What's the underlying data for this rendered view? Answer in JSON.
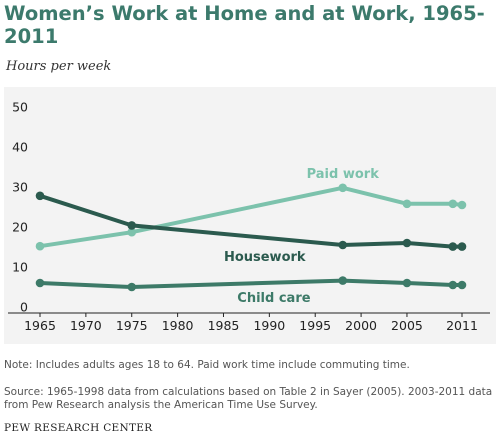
{
  "title": "Women’s Work at Home and at Work, 1965-2011",
  "subtitle": "Hours per week",
  "note": "Note: Includes adults ages 18 to 64. Paid work time include commuting time.",
  "source": "Source: 1965-1998 data from calculations based on Table 2 in Sayer (2005). 2003-2011 data from Pew Research analysis the American Time Use Survey.",
  "credit": "PEW RESEARCH CENTER",
  "colors": {
    "paid_work": "#7cc2ac",
    "housework": "#2b5a4e",
    "child_care": "#3d7a68",
    "axis": "#222222",
    "panel": "#f3f3f3"
  },
  "chart_data": {
    "type": "line",
    "title": "Women’s Work at Home and at Work, 1965-2011",
    "ylabel": "Hours per week",
    "xlabel": "",
    "ylim": [
      0,
      50
    ],
    "xlim": [
      1965,
      2011
    ],
    "y_ticks": [
      0,
      10,
      20,
      30,
      40,
      50
    ],
    "x_ticks": [
      1965,
      1970,
      1975,
      1980,
      1985,
      1990,
      1995,
      2000,
      2005,
      2011
    ],
    "grid": false,
    "legend": "direct labels",
    "series": [
      {
        "name": "Paid work",
        "color": "#7cc2ac",
        "points": [
          [
            1965,
            15.2
          ],
          [
            1975,
            18.7
          ],
          [
            1998,
            29.8
          ],
          [
            2005,
            25.8
          ],
          [
            2010,
            25.8
          ],
          [
            2011,
            25.5
          ]
        ]
      },
      {
        "name": "Housework",
        "color": "#2b5a4e",
        "points": [
          [
            1965,
            27.8
          ],
          [
            1975,
            20.4
          ],
          [
            1998,
            15.5
          ],
          [
            2005,
            16.0
          ],
          [
            2010,
            15.1
          ],
          [
            2011,
            15.1
          ]
        ]
      },
      {
        "name": "Child care",
        "color": "#3d7a68",
        "points": [
          [
            1965,
            6.0
          ],
          [
            1975,
            5.0
          ],
          [
            1998,
            6.6
          ],
          [
            2005,
            6.0
          ],
          [
            2010,
            5.5
          ],
          [
            2011,
            5.5
          ]
        ]
      }
    ]
  }
}
